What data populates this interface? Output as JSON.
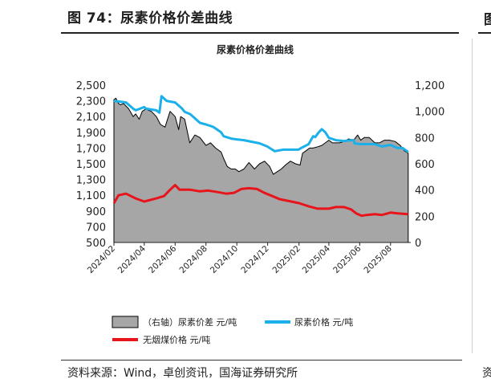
{
  "figure": {
    "title": "图 74：尿素价格价差曲线",
    "source": "资料来源：Wind，卓创资讯，国海证券研究所",
    "right_stub_top": "图",
    "right_stub_bottom": "资"
  },
  "colors": {
    "spread_fill": "#a6a6a6",
    "spread_line": "#000000",
    "urea_price": "#1cb0ea",
    "anthracite_price": "#e8141c"
  },
  "chart_data": {
    "type": "area",
    "title": "尿素价格价差曲线",
    "left_axis": {
      "range": [
        500,
        2500
      ],
      "ticks": [
        "500",
        "700",
        "900",
        "1,100",
        "1,300",
        "1,500",
        "1,700",
        "1,900",
        "2,100",
        "2,300",
        "2,500"
      ]
    },
    "right_axis": {
      "range": [
        0,
        1200
      ],
      "ticks": [
        "0",
        "200",
        "400",
        "600",
        "800",
        "1,000",
        "1,200"
      ]
    },
    "x_range": [
      "2024-02-01",
      "2025-09-10"
    ],
    "x_ticks": [
      "2024/02",
      "2024/04",
      "2024/06",
      "2024/08",
      "2024/10",
      "2024/12",
      "2025/02",
      "2025/04",
      "2025/06",
      "2025/08"
    ],
    "legend_placement": "bottom",
    "series": [
      {
        "name": "（右轴）尿素价差 元/吨",
        "axis": "right",
        "kind": "area",
        "x": [
          "2024-02-01",
          "2024-02-05",
          "2024-02-10",
          "2024-02-14",
          "2024-02-20",
          "2024-03-01",
          "2024-03-10",
          "2024-03-15",
          "2024-03-22",
          "2024-03-28",
          "2024-04-05",
          "2024-04-08",
          "2024-04-15",
          "2024-04-25",
          "2024-05-03",
          "2024-05-12",
          "2024-05-22",
          "2024-06-01",
          "2024-06-08",
          "2024-06-12",
          "2024-06-20",
          "2024-06-30",
          "2024-07-10",
          "2024-07-20",
          "2024-08-01",
          "2024-08-10",
          "2024-08-20",
          "2024-08-31",
          "2024-09-05",
          "2024-09-12",
          "2024-09-20",
          "2024-09-28",
          "2024-10-05",
          "2024-10-15",
          "2024-10-25",
          "2024-11-05",
          "2024-11-15",
          "2024-11-25",
          "2024-12-05",
          "2024-12-12",
          "2024-12-20",
          "2024-12-28",
          "2025-01-05",
          "2025-01-15",
          "2025-01-25",
          "2025-02-03",
          "2025-02-08",
          "2025-02-15",
          "2025-02-22",
          "2025-03-01",
          "2025-03-10",
          "2025-03-18",
          "2025-03-25",
          "2025-04-01",
          "2025-04-08",
          "2025-04-15",
          "2025-04-22",
          "2025-05-01",
          "2025-05-10",
          "2025-05-20",
          "2025-05-28",
          "2025-06-03",
          "2025-06-10",
          "2025-06-20",
          "2025-07-01",
          "2025-07-10",
          "2025-07-20",
          "2025-07-30",
          "2025-08-10",
          "2025-08-20",
          "2025-08-28",
          "2025-09-05"
        ],
        "values": [
          1090,
          1100,
          1060,
          1050,
          1060,
          1020,
          960,
          980,
          940,
          1000,
          1020,
          1010,
          1000,
          960,
          900,
          880,
          1000,
          960,
          860,
          960,
          940,
          760,
          820,
          800,
          740,
          760,
          720,
          690,
          640,
          580,
          560,
          560,
          540,
          560,
          610,
          560,
          600,
          620,
          580,
          520,
          540,
          560,
          590,
          620,
          600,
          590,
          680,
          700,
          720,
          720,
          730,
          740,
          760,
          780,
          760,
          760,
          760,
          770,
          790,
          780,
          820,
          780,
          800,
          800,
          760,
          760,
          780,
          780,
          770,
          740,
          700,
          680
        ]
      },
      {
        "name": "尿素价格 元/吨",
        "axis": "left",
        "kind": "line",
        "x": [
          "2024-02-01",
          "2024-02-25",
          "2024-03-10",
          "2024-03-15",
          "2024-04-01",
          "2024-04-05",
          "2024-04-25",
          "2024-05-01",
          "2024-05-05",
          "2024-05-15",
          "2024-06-01",
          "2024-06-15",
          "2024-06-20",
          "2024-07-01",
          "2024-07-20",
          "2024-08-01",
          "2024-08-15",
          "2024-08-31",
          "2024-09-05",
          "2024-09-20",
          "2024-10-01",
          "2024-10-15",
          "2024-10-31",
          "2024-11-15",
          "2024-11-30",
          "2024-12-10",
          "2024-12-15",
          "2025-01-01",
          "2025-01-15",
          "2025-01-31",
          "2025-02-05",
          "2025-02-20",
          "2025-03-01",
          "2025-03-05",
          "2025-03-12",
          "2025-03-18",
          "2025-03-25",
          "2025-04-01",
          "2025-04-15",
          "2025-05-01",
          "2025-05-15",
          "2025-05-20",
          "2025-05-22",
          "2025-06-01",
          "2025-06-15",
          "2025-07-01",
          "2025-07-15",
          "2025-08-01",
          "2025-08-15",
          "2025-08-25",
          "2025-09-05"
        ],
        "values": [
          2300,
          2280,
          2200,
          2180,
          2220,
          2200,
          2180,
          2150,
          2360,
          2300,
          2280,
          2200,
          2160,
          2130,
          2020,
          2000,
          1970,
          1900,
          1850,
          1820,
          1810,
          1800,
          1780,
          1760,
          1720,
          1680,
          1660,
          1680,
          1680,
          1680,
          1700,
          1750,
          1850,
          1840,
          1900,
          1940,
          1900,
          1830,
          1800,
          1790,
          1800,
          1800,
          1760,
          1750,
          1750,
          1750,
          1720,
          1740,
          1700,
          1700,
          1650
        ]
      },
      {
        "name": "无烟煤价格 元/吨",
        "axis": "left",
        "kind": "line",
        "x": [
          "2024-02-01",
          "2024-02-10",
          "2024-02-25",
          "2024-03-15",
          "2024-04-01",
          "2024-04-25",
          "2024-05-10",
          "2024-05-22",
          "2024-06-01",
          "2024-06-10",
          "2024-07-01",
          "2024-07-20",
          "2024-08-05",
          "2024-08-25",
          "2024-09-10",
          "2024-09-25",
          "2024-10-10",
          "2024-10-25",
          "2024-11-10",
          "2024-11-25",
          "2024-12-10",
          "2024-12-25",
          "2025-01-10",
          "2025-02-01",
          "2025-02-20",
          "2025-03-10",
          "2025-04-01",
          "2025-04-15",
          "2025-05-01",
          "2025-05-15",
          "2025-05-25",
          "2025-06-05",
          "2025-06-15",
          "2025-07-01",
          "2025-07-15",
          "2025-08-01",
          "2025-08-15",
          "2025-09-05"
        ],
        "values": [
          1000,
          1100,
          1120,
          1060,
          1020,
          1060,
          1090,
          1170,
          1230,
          1170,
          1170,
          1150,
          1160,
          1140,
          1120,
          1130,
          1180,
          1190,
          1180,
          1130,
          1090,
          1050,
          1030,
          1000,
          960,
          930,
          930,
          950,
          950,
          920,
          870,
          840,
          850,
          860,
          850,
          880,
          870,
          860
        ]
      }
    ]
  }
}
